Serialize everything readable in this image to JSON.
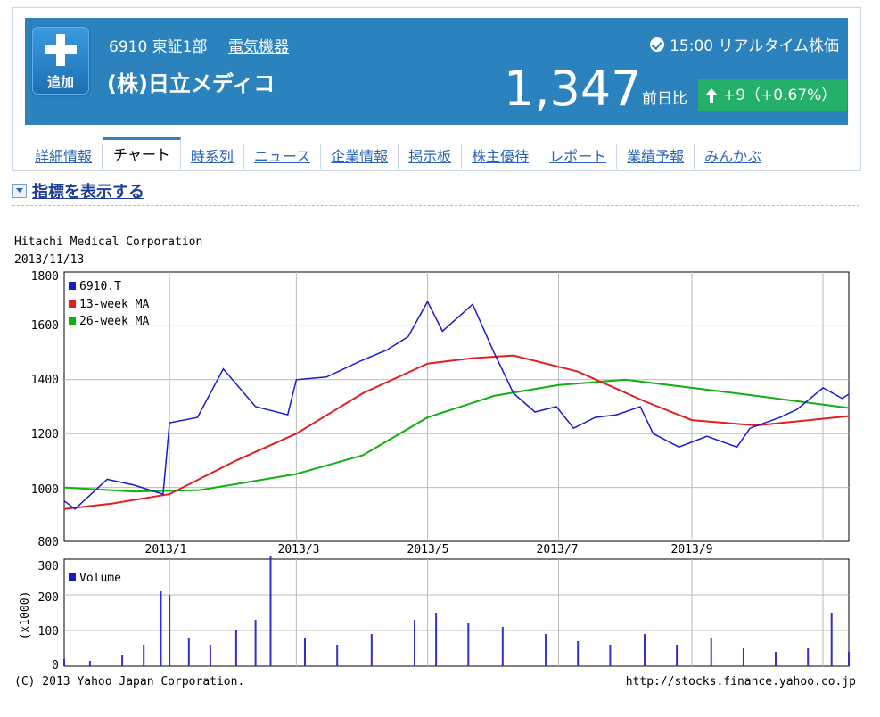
{
  "header": {
    "add_label": "追加",
    "code": "6910",
    "market": "東証1部",
    "sector": "電気機器",
    "company": "(株)日立メディコ",
    "realtime": "15:00 リアルタイム株価",
    "price": "1,347",
    "prev_label": "前日比",
    "change": "+9（+0.67%）",
    "colors": {
      "banner": "#2b82bd",
      "change_bg": "#25b06a"
    }
  },
  "tabs": [
    {
      "label": "詳細情報"
    },
    {
      "label": "チャート",
      "active": true
    },
    {
      "label": "時系列"
    },
    {
      "label": "ニュース"
    },
    {
      "label": "企業情報"
    },
    {
      "label": "掲示板"
    },
    {
      "label": "株主優待"
    },
    {
      "label": "レポート"
    },
    {
      "label": "業績予報"
    },
    {
      "label": "みんかぶ"
    }
  ],
  "indicator_toggle": "指標を表示する",
  "chart": {
    "title": "Hitachi Medical Corporation",
    "date": "2013/11/13",
    "footer_left": "(C) 2013 Yahoo Japan Corporation.",
    "footer_right": "http://stocks.finance.yahoo.co.jp",
    "y_ticks": [
      "1800",
      "1600",
      "1400",
      "1200",
      "1000",
      "800"
    ],
    "x_ticks": [
      "2013/1",
      "2013/3",
      "2013/5",
      "2013/7",
      "2013/9"
    ],
    "vol_ticks": [
      "300",
      "200",
      "100",
      "0"
    ],
    "vol_unit": "(x1000)",
    "legend": [
      "6910.T",
      "13-week MA",
      "26-week MA"
    ],
    "vol_legend": "Volume"
  },
  "chart_data": {
    "type": "line",
    "ylim": [
      800,
      1800
    ],
    "x_range": [
      "2012/11/13",
      "2013/11/13"
    ],
    "series": [
      {
        "name": "6910.T",
        "color": "#1a1acc",
        "points": [
          [
            "2012/11/13",
            950
          ],
          [
            "2012/11/18",
            920
          ],
          [
            "2012/12/03",
            1030
          ],
          [
            "2012/12/15",
            1010
          ],
          [
            "2012/12/25",
            985
          ],
          [
            "2012/12/29",
            975
          ],
          [
            "2013/01/01",
            1240
          ],
          [
            "2013/01/14",
            1260
          ],
          [
            "2013/01/26",
            1440
          ],
          [
            "2013/02/10",
            1300
          ],
          [
            "2013/02/25",
            1270
          ],
          [
            "2013/03/01",
            1400
          ],
          [
            "2013/03/15",
            1410
          ],
          [
            "2013/03/31",
            1470
          ],
          [
            "2013/04/12",
            1510
          ],
          [
            "2013/04/22",
            1560
          ],
          [
            "2013/05/01",
            1690
          ],
          [
            "2013/05/08",
            1580
          ],
          [
            "2013/05/22",
            1680
          ],
          [
            "2013/06/01",
            1500
          ],
          [
            "2013/06/10",
            1350
          ],
          [
            "2013/06/20",
            1280
          ],
          [
            "2013/06/30",
            1300
          ],
          [
            "2013/07/08",
            1220
          ],
          [
            "2013/07/18",
            1260
          ],
          [
            "2013/07/28",
            1270
          ],
          [
            "2013/08/08",
            1300
          ],
          [
            "2013/08/14",
            1200
          ],
          [
            "2013/08/26",
            1150
          ],
          [
            "2013/09/08",
            1190
          ],
          [
            "2013/09/22",
            1150
          ],
          [
            "2013/09/28",
            1220
          ],
          [
            "2013/10/12",
            1260
          ],
          [
            "2013/10/20",
            1290
          ],
          [
            "2013/11/01",
            1370
          ],
          [
            "2013/11/10",
            1330
          ],
          [
            "2013/11/13",
            1347
          ]
        ]
      },
      {
        "name": "13-week MA",
        "color": "#e02020",
        "points": [
          [
            "2012/11/13",
            920
          ],
          [
            "2012/12/05",
            940
          ],
          [
            "2013/01/01",
            975
          ],
          [
            "2013/02/01",
            1100
          ],
          [
            "2013/03/01",
            1200
          ],
          [
            "2013/04/01",
            1350
          ],
          [
            "2013/05/01",
            1460
          ],
          [
            "2013/05/22",
            1480
          ],
          [
            "2013/06/10",
            1490
          ],
          [
            "2013/07/10",
            1430
          ],
          [
            "2013/08/10",
            1320
          ],
          [
            "2013/09/01",
            1250
          ],
          [
            "2013/10/01",
            1230
          ],
          [
            "2013/11/13",
            1265
          ]
        ]
      },
      {
        "name": "26-week MA",
        "color": "#10b010",
        "points": [
          [
            "2012/11/13",
            1000
          ],
          [
            "2012/12/15",
            985
          ],
          [
            "2013/01/15",
            990
          ],
          [
            "2013/03/01",
            1050
          ],
          [
            "2013/04/01",
            1120
          ],
          [
            "2013/05/01",
            1260
          ],
          [
            "2013/06/01",
            1340
          ],
          [
            "2013/07/01",
            1380
          ],
          [
            "2013/08/01",
            1400
          ],
          [
            "2013/09/01",
            1370
          ],
          [
            "2013/10/01",
            1340
          ],
          [
            "2013/11/13",
            1295
          ]
        ]
      }
    ],
    "volume": {
      "name": "Volume",
      "unit": "x1000",
      "ylim": [
        0,
        300
      ],
      "bars": [
        [
          "2012/11/13",
          20
        ],
        [
          "2012/11/25",
          15
        ],
        [
          "2012/12/10",
          30
        ],
        [
          "2012/12/20",
          60
        ],
        [
          "2012/12/28",
          210
        ],
        [
          "2013/01/01",
          200
        ],
        [
          "2013/01/10",
          80
        ],
        [
          "2013/01/20",
          60
        ],
        [
          "2013/02/01",
          100
        ],
        [
          "2013/02/10",
          130
        ],
        [
          "2013/02/17",
          310
        ],
        [
          "2013/03/05",
          80
        ],
        [
          "2013/03/20",
          60
        ],
        [
          "2013/04/05",
          90
        ],
        [
          "2013/04/25",
          130
        ],
        [
          "2013/05/05",
          150
        ],
        [
          "2013/05/20",
          120
        ],
        [
          "2013/06/05",
          110
        ],
        [
          "2013/06/25",
          90
        ],
        [
          "2013/07/10",
          70
        ],
        [
          "2013/07/25",
          60
        ],
        [
          "2013/08/10",
          90
        ],
        [
          "2013/08/25",
          60
        ],
        [
          "2013/09/10",
          80
        ],
        [
          "2013/09/25",
          50
        ],
        [
          "2013/10/10",
          40
        ],
        [
          "2013/10/25",
          50
        ],
        [
          "2013/11/05",
          150
        ],
        [
          "2013/11/13",
          40
        ]
      ]
    }
  }
}
